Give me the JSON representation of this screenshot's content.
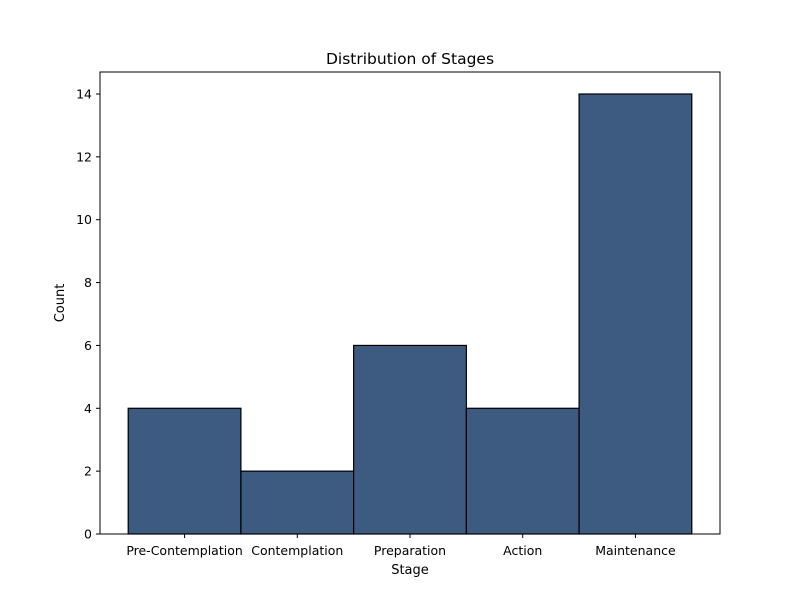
{
  "chart_data": {
    "type": "bar",
    "title": "Distribution of Stages",
    "xlabel": "Stage",
    "ylabel": "Count",
    "categories": [
      "Pre-Contemplation",
      "Contemplation",
      "Preparation",
      "Action",
      "Maintenance"
    ],
    "values": [
      4,
      2,
      6,
      4,
      14
    ],
    "ylim": [
      0,
      14.7
    ],
    "yticks": [
      0,
      2,
      4,
      6,
      8,
      10,
      12,
      14
    ],
    "grid": false,
    "bar_color": "#3d5a80",
    "edge_color": "#000000"
  }
}
